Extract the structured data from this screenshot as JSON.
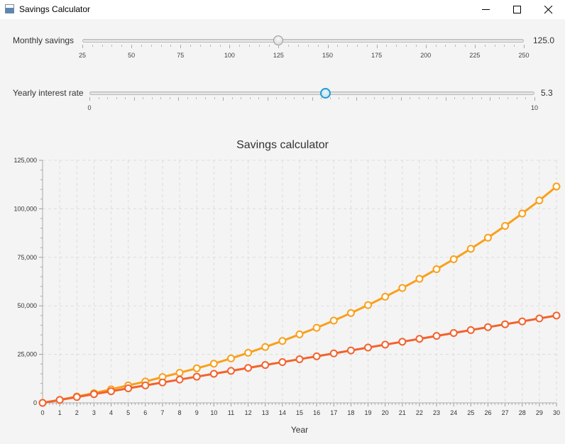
{
  "window": {
    "title": "Savings Calculator",
    "minimize_icon": "minimize-icon",
    "maximize_icon": "maximize-icon",
    "close_icon": "close-icon"
  },
  "controls": {
    "monthly_savings": {
      "label": "Monthly savings",
      "value": "125.0",
      "min": 25,
      "max": 250,
      "tick_labels": [
        "25",
        "50",
        "75",
        "100",
        "125",
        "150",
        "175",
        "200",
        "225",
        "250"
      ]
    },
    "interest_rate": {
      "label": "Yearly interest rate",
      "value": "5.3",
      "min": 0,
      "max": 10,
      "tick_labels": [
        "0",
        "10"
      ]
    }
  },
  "colors": {
    "series_with_interest": "#f9a01b",
    "series_savings_only": "#f3622d"
  },
  "chart_data": {
    "type": "line",
    "title": "Savings calculator",
    "xlabel": "Year",
    "ylabel": "",
    "xlim": [
      0,
      30
    ],
    "ylim": [
      0,
      125000
    ],
    "x_ticks": [
      "0",
      "1",
      "2",
      "3",
      "4",
      "5",
      "6",
      "7",
      "8",
      "9",
      "10",
      "11",
      "12",
      "13",
      "14",
      "15",
      "16",
      "17",
      "18",
      "19",
      "20",
      "21",
      "22",
      "23",
      "24",
      "25",
      "26",
      "27",
      "28",
      "29",
      "30"
    ],
    "y_ticks": [
      "0",
      "25,000",
      "50,000",
      "75,000",
      "100,000",
      "125,000"
    ],
    "grid": true,
    "legend": "none",
    "series": [
      {
        "x": [
          0,
          1,
          2,
          3,
          4,
          5,
          6,
          7,
          8,
          9,
          10,
          11,
          12,
          13,
          14,
          15,
          16,
          17,
          18,
          19,
          20,
          21,
          22,
          23,
          24,
          25,
          26,
          27,
          28,
          29,
          30
        ],
        "values": [
          0,
          1500,
          3300,
          5000,
          7000,
          9000,
          11000,
          13300,
          15500,
          17800,
          20200,
          22900,
          25800,
          28800,
          31900,
          35300,
          38700,
          42400,
          46300,
          50400,
          54700,
          59200,
          63900,
          68900,
          74000,
          79400,
          85100,
          91200,
          97600,
          104300,
          111500
        ]
      },
      {
        "x": [
          0,
          1,
          2,
          3,
          4,
          5,
          6,
          7,
          8,
          9,
          10,
          11,
          12,
          13,
          14,
          15,
          16,
          17,
          18,
          19,
          20,
          21,
          22,
          23,
          24,
          25,
          26,
          27,
          28,
          29,
          30
        ],
        "values": [
          0,
          1500,
          3000,
          4500,
          6000,
          7500,
          9000,
          10500,
          12000,
          13500,
          15000,
          16500,
          18000,
          19500,
          21000,
          22500,
          24000,
          25500,
          27000,
          28500,
          30000,
          31500,
          33000,
          34500,
          36000,
          37500,
          39000,
          40500,
          42000,
          43500,
          45000
        ]
      }
    ]
  }
}
